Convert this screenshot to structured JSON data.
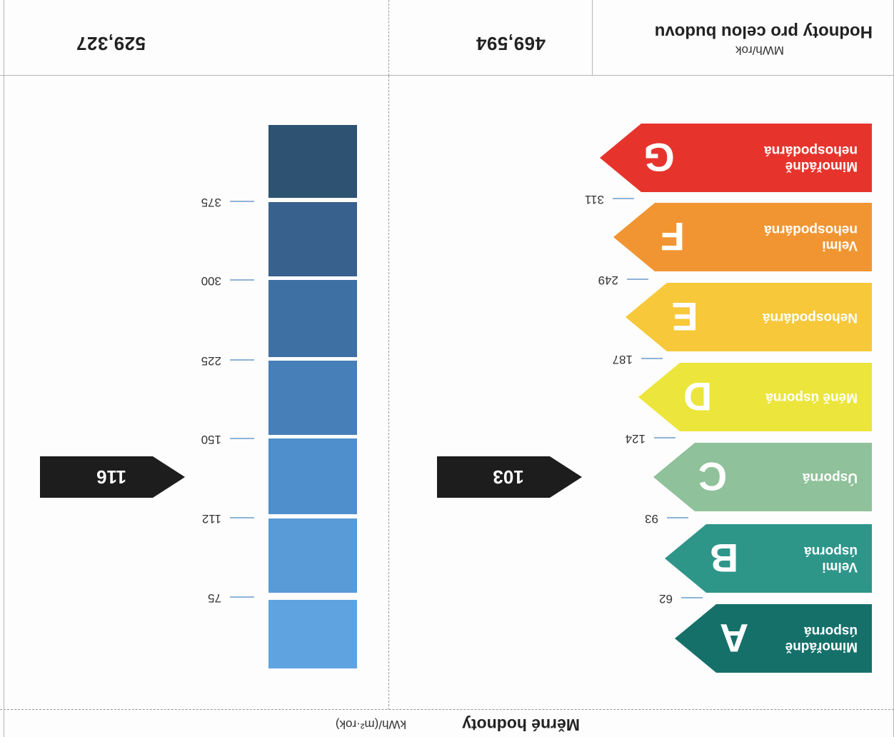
{
  "header": {
    "specific_title": "Měrné hodnoty",
    "specific_unit": "kWh/(m²·rok)",
    "building_title": "Hodnoty pro celou budovu",
    "building_unit": "MWh/rok"
  },
  "energy_classes": [
    {
      "letter": "A",
      "line1": "Mimořádně",
      "line2": "úsporná",
      "color": "#16706a"
    },
    {
      "letter": "B",
      "line1": "Velmi",
      "line2": "úsporná",
      "color": "#2e9589"
    },
    {
      "letter": "C",
      "line1": "Úsporná",
      "line2": "",
      "color": "#8fc19a"
    },
    {
      "letter": "D",
      "line1": "Méně úsporná",
      "line2": "",
      "color": "#ece53b"
    },
    {
      "letter": "E",
      "line1": "Nehospodárná",
      "line2": "",
      "color": "#f6c83a"
    },
    {
      "letter": "F",
      "line1": "Velmi",
      "line2": "nehospodárná",
      "color": "#f19532"
    },
    {
      "letter": "G",
      "line1": "Mimořádně",
      "line2": "nehospodárná",
      "color": "#e6342d"
    }
  ],
  "class_thresholds": [
    "62",
    "93",
    "124",
    "187",
    "249",
    "311"
  ],
  "blue_thresholds": [
    "75",
    "112",
    "150",
    "225",
    "300",
    "375"
  ],
  "blue_colors": [
    "#5fa3e0",
    "#589bd6",
    "#4f8fcb",
    "#477fb8",
    "#3f70a4",
    "#38618e",
    "#2d5272"
  ],
  "building_value_marker": "103",
  "reference_value_marker": "116",
  "building_total": "469,594",
  "reference_total": "529,327"
}
